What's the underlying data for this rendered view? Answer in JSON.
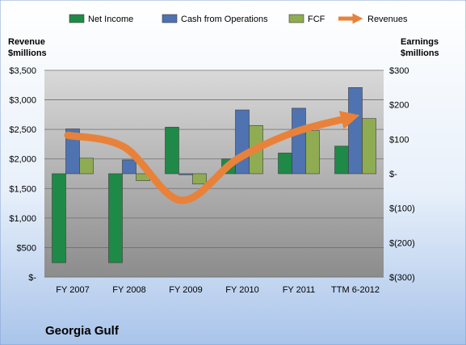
{
  "colors": {
    "net_income": "#1f8a47",
    "cash_from_operations": "#4f73b0",
    "fcf": "#8fac52",
    "revenues": "#e8823a"
  },
  "chart_data": {
    "type": "bar",
    "title": "",
    "company": "Georgia Gulf",
    "categories": [
      "FY 2007",
      "FY 2008",
      "FY 2009",
      "FY 2010",
      "FY 2011",
      "TTM 6-2012"
    ],
    "left_axis": {
      "title_line1": "Revenue",
      "title_line2": "$millions",
      "ylim": [
        0,
        3500
      ],
      "ticks": [
        0,
        500,
        1000,
        1500,
        2000,
        2500,
        3000,
        3500
      ],
      "tick_labels": [
        "$-",
        "$500",
        "$1,000",
        "$1,500",
        "$2,000",
        "$2,500",
        "$3,000",
        "$3,500"
      ]
    },
    "right_axis": {
      "title_line1": "Earnings",
      "title_line2": "$millions",
      "ylim": [
        -300,
        300
      ],
      "ticks": [
        -300,
        -200,
        -100,
        0,
        100,
        200,
        300
      ],
      "tick_labels": [
        "$(300)",
        "$(200)",
        "$(100)",
        "$-",
        "$100",
        "$200",
        "$300"
      ]
    },
    "series": [
      {
        "name": "Net Income",
        "axis": "right",
        "kind": "bar",
        "values": [
          -258,
          -258,
          135,
          43,
          60,
          80
        ]
      },
      {
        "name": "Cash from Operations",
        "axis": "right",
        "kind": "bar",
        "values": [
          130,
          40,
          -3,
          185,
          190,
          250
        ]
      },
      {
        "name": "FCF",
        "axis": "right",
        "kind": "bar",
        "values": [
          45,
          -20,
          -30,
          140,
          125,
          160
        ]
      },
      {
        "name": "Revenues",
        "axis": "left",
        "kind": "line",
        "values": [
          2400,
          2200,
          1300,
          2000,
          2450,
          2700
        ]
      }
    ],
    "legend": [
      "Net Income",
      "Cash from Operations",
      "FCF",
      "Revenues"
    ],
    "legend_position": "top",
    "grid": true
  }
}
